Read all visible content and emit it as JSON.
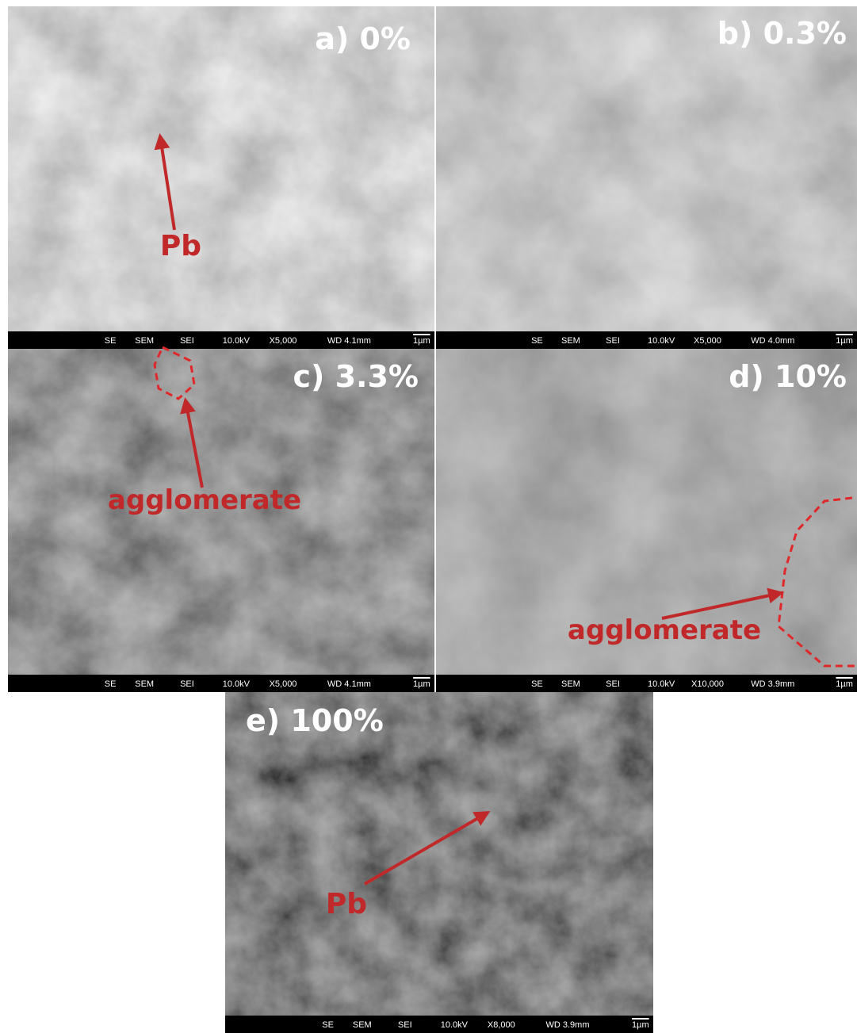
{
  "panels": [
    {
      "label": "a) 0%",
      "info": [
        "SE",
        "SEM",
        "SEI",
        "10.0kV",
        "X5,000",
        "WD 4.1mm",
        "1µm"
      ],
      "annotation": "Pb"
    },
    {
      "label": "b) 0.3%",
      "info": [
        "SE",
        "SEM",
        "SEI",
        "10.0kV",
        "X5,000",
        "WD 4.0mm",
        "1µm"
      ]
    },
    {
      "label": "c) 3.3%",
      "info": [
        "SE",
        "SEM",
        "SEI",
        "10.0kV",
        "X5,000",
        "WD 4.1mm",
        "1µm"
      ],
      "annotation": "agglomerate"
    },
    {
      "label": "d) 10%",
      "info": [
        "SE",
        "SEM",
        "SEI",
        "10.0kV",
        "X10,000",
        "WD 3.9mm",
        "1µm"
      ],
      "annotation": "agglomerate"
    },
    {
      "label": "e) 100%",
      "info": [
        "SE",
        "SEM",
        "SEI",
        "10.0kV",
        "X8,000",
        "WD 3.9mm",
        "1µm"
      ],
      "annotation": "Pb"
    }
  ]
}
